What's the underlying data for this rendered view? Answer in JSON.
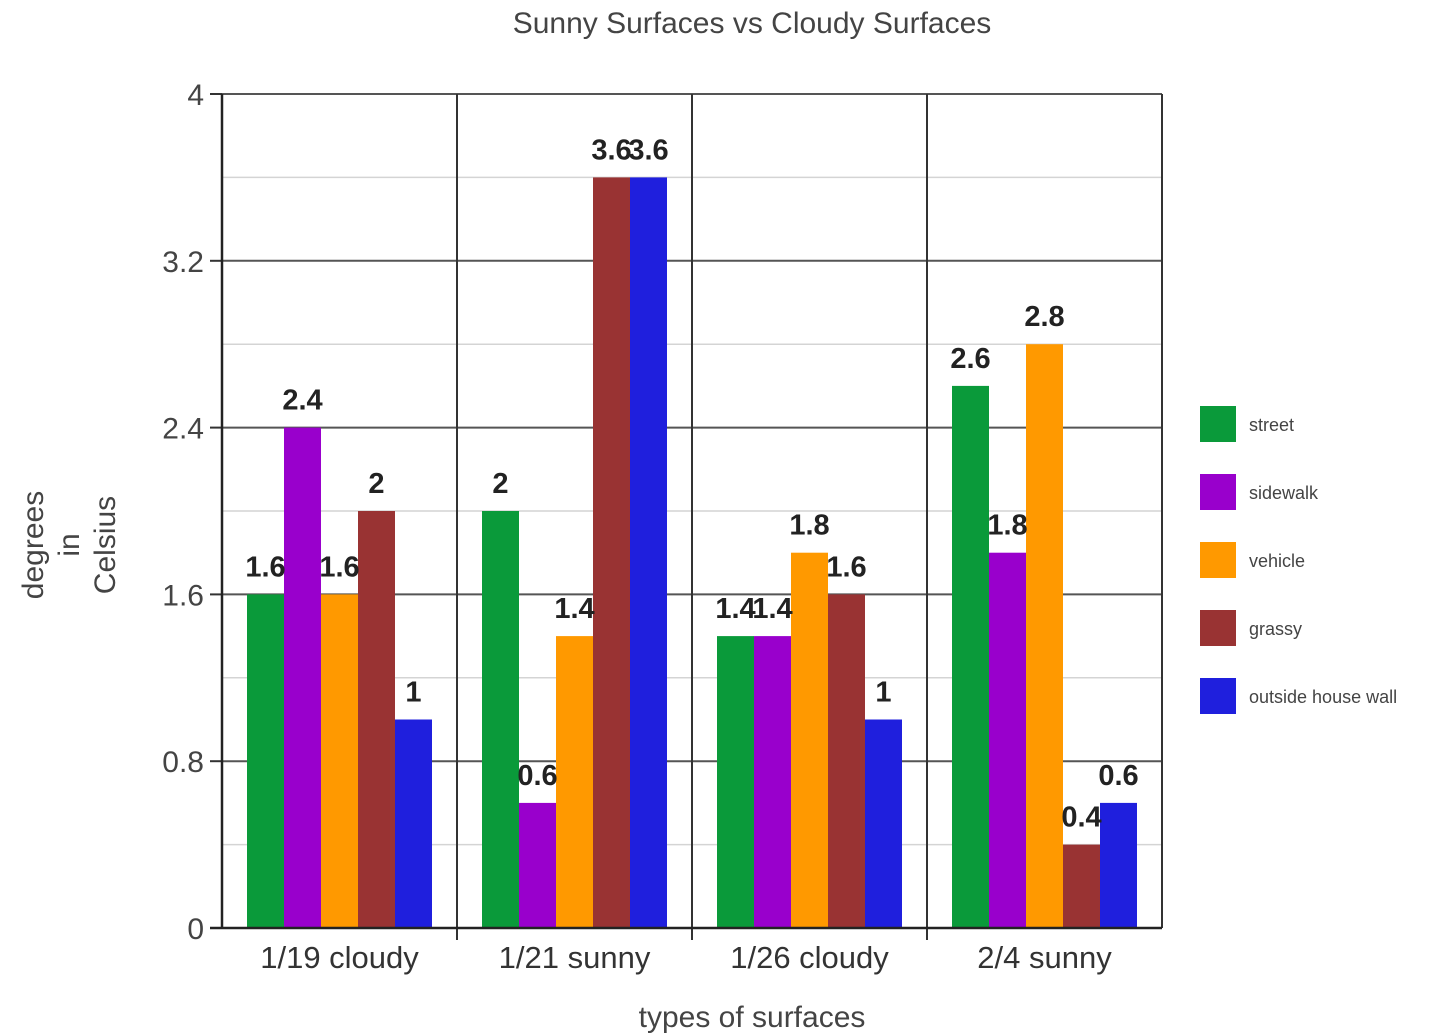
{
  "chart_data": {
    "type": "bar",
    "title": "Sunny Surfaces vs Cloudy Surfaces",
    "xlabel": "types of surfaces",
    "ylabel_lines": [
      "degrees",
      "in",
      "Celsius"
    ],
    "categories": [
      "1/19 cloudy",
      "1/21 sunny",
      "1/26 cloudy",
      "2/4 sunny"
    ],
    "ylim": [
      0,
      4
    ],
    "yticks": [
      0,
      0.8,
      1.6,
      2.4,
      3.2,
      4
    ],
    "ytick_labels": [
      "0",
      "0.8",
      "1.6",
      "2.4",
      "3.2",
      "4"
    ],
    "grid": true,
    "legend_position": "right",
    "series": [
      {
        "name": "street",
        "color": "#0a9a3a",
        "values": [
          1.6,
          2,
          1.4,
          2.6
        ],
        "labels": [
          "1.6",
          "2",
          "1.4",
          "2.6"
        ]
      },
      {
        "name": "sidewalk",
        "color": "#9900cc",
        "values": [
          2.4,
          0.6,
          1.4,
          1.8
        ],
        "labels": [
          "2.4",
          "0.6",
          "1.4",
          "1.8"
        ]
      },
      {
        "name": "vehicle",
        "color": "#ff9900",
        "values": [
          1.6,
          1.4,
          1.8,
          2.8
        ],
        "labels": [
          "1.6",
          "1.4",
          "1.8",
          "2.8"
        ]
      },
      {
        "name": "grassy",
        "color": "#993333",
        "values": [
          2,
          3.6,
          1.6,
          0.4
        ],
        "labels": [
          "2",
          "3.6",
          "1.6",
          "0.4"
        ]
      },
      {
        "name": "outside house wall",
        "color": "#1f1fdd",
        "values": [
          1,
          3.6,
          1,
          0.6
        ],
        "labels": [
          "1",
          "3.6",
          "1",
          "0.6"
        ]
      }
    ]
  }
}
